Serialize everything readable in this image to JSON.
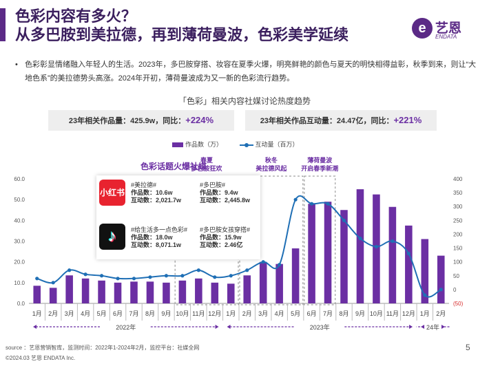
{
  "header": {
    "title_line1": "色彩内容有多火？",
    "title_line2": "从多巴胺到美拉德，再到薄荷曼波，色彩美学延续"
  },
  "logo": {
    "cn": "艺恩",
    "en": "ENDATA",
    "mark": "e"
  },
  "intro": {
    "bullet": "•",
    "text": "色彩彰显情绪融入年轻人的生活。2023年，多巴胺穿搭、妆容在夏季火爆，明亮鲜艳的颜色与夏天的明快相得益彰，秋季到来，则让“大地色系”的美拉德势头高涨。2024年开初，薄荷曼波成为又一新的色彩流行趋势。"
  },
  "stats": [
    {
      "label": "23年相关作品量：425.9w，同比：",
      "value": "+224%"
    },
    {
      "label": "23年相关作品互动量：24.47亿，同比：",
      "value": "+221%"
    }
  ],
  "hot_topics": {
    "title": "色彩话题火爆社媒",
    "platforms": [
      {
        "icon": "xiaohongshu-icon",
        "icon_text": "小红书",
        "topics": [
          {
            "name": "#美拉德#",
            "works": "作品数：10.6w",
            "interact": "互动数：2,021.7w"
          },
          {
            "name": "#多巴胺#",
            "works": "作品数：9.4w",
            "interact": "互动数：2,445.8w"
          }
        ]
      },
      {
        "icon": "douyin-icon",
        "icon_text": "♪",
        "topics": [
          {
            "name": "#给生活多一点色彩#",
            "works": "作品数：18.0w",
            "interact": "互动数：8,071.1w"
          },
          {
            "name": "#多巴胺女孩穿搭#",
            "works": "作品数：15.9w",
            "interact": "互动数：2.46亿"
          }
        ]
      }
    ]
  },
  "periods": [
    {
      "line1": "春夏",
      "line2": "多巴胺狂欢",
      "from": 9,
      "to": 12
    },
    {
      "line1": "秋冬",
      "line2": "美拉德风起",
      "from": 13,
      "to": 16
    },
    {
      "line1": "薄荷曼波",
      "line2": "开启春季新潮",
      "from": 17,
      "to": 18
    }
  ],
  "chart_data": {
    "type": "bar+line",
    "title": "「色彩」相关内容社媒讨论热度趋势",
    "categories": [
      "1月",
      "2月",
      "3月",
      "4月",
      "5月",
      "6月",
      "7月",
      "8月",
      "9月",
      "10月",
      "11月",
      "12月",
      "1月",
      "2月",
      "3月",
      "4月",
      "5月",
      "6月",
      "7月",
      "8月",
      "9月",
      "10月",
      "11月",
      "12月",
      "1月",
      "2月"
    ],
    "year_groups": [
      {
        "label": "2022年",
        "from": 0,
        "to": 11
      },
      {
        "label": "2023年",
        "from": 12,
        "to": 23
      },
      {
        "label": "24年",
        "from": 24,
        "to": 25
      }
    ],
    "series": [
      {
        "name": "作品数（万）",
        "type": "bar",
        "axis": "left",
        "color": "#6b2fa3",
        "values": [
          8.5,
          7.5,
          13.5,
          12,
          11,
          10,
          10.5,
          10.5,
          10,
          11,
          12,
          10,
          9.5,
          13.5,
          20,
          19,
          26.5,
          48,
          49,
          45,
          55,
          52.5,
          46.5,
          37.5,
          31,
          23
        ]
      },
      {
        "name": "互动量（百万）",
        "type": "line",
        "axis": "right",
        "color": "#1f6fb5",
        "values": [
          40,
          25,
          70,
          55,
          50,
          40,
          40,
          45,
          50,
          50,
          70,
          45,
          50,
          70,
          100,
          90,
          325,
          310,
          310,
          250,
          185,
          155,
          175,
          130,
          -20,
          0
        ]
      }
    ],
    "y_left": {
      "min": 0,
      "max": 60,
      "ticks": [
        "0.0",
        "10.0",
        "20.0",
        "30.0",
        "40.0",
        "50.0",
        "60.0"
      ]
    },
    "y_right": {
      "min": -50,
      "max": 400,
      "ticks": [
        "(50)",
        "0",
        "50",
        "100",
        "150",
        "200",
        "250",
        "300",
        "350",
        "400"
      ]
    },
    "legend_position": "top-center"
  },
  "footer": {
    "source": "source ：艺恩营销智库，监测时间：2022年1-2024年2月，监控平台：社媒全网",
    "copyright": "©2024.03  艺恩 ENDATA Inc.",
    "page": "5"
  }
}
